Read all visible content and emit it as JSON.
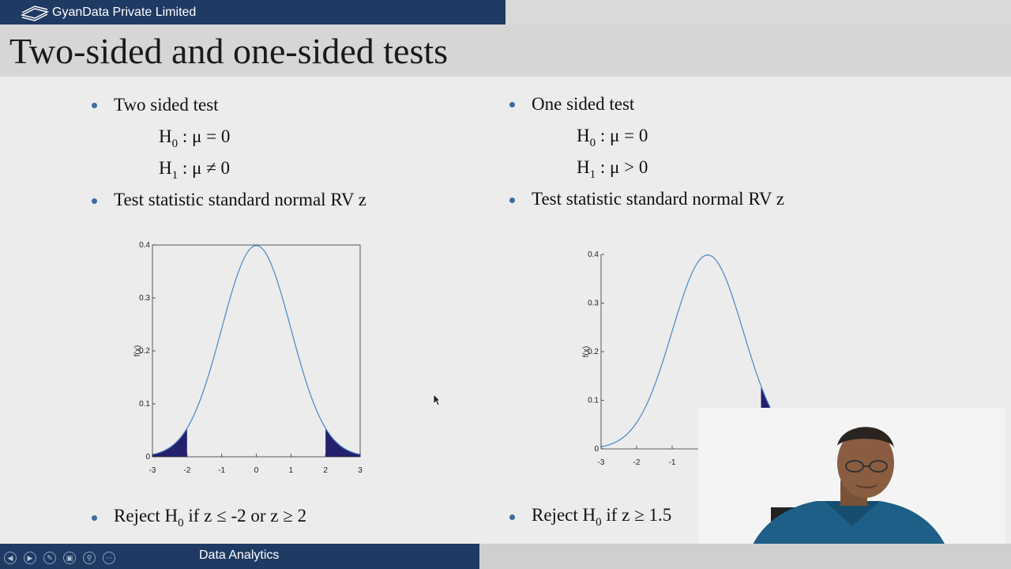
{
  "header": {
    "brand": "GyanData Private Limited",
    "title": "Two-sided and one-sided tests"
  },
  "left": {
    "bullet1": "Two sided test",
    "h0_sym": "H",
    "h0_sub": "0",
    "h0_rest": ":  μ = 0",
    "h1_sym": "H",
    "h1_sub": "1",
    "h1_rest": ":  μ ≠ 0",
    "bullet2": "Test statistic standard normal RV z",
    "reject_pre": "Reject H",
    "reject_sub": "0",
    "reject_post": " if  z ≤ -2  or  z ≥ 2"
  },
  "right": {
    "bullet1": "One sided test",
    "h0_sym": "H",
    "h0_sub": "0",
    "h0_rest": ":  μ = 0",
    "h1_sym": "H",
    "h1_sub": "1",
    "h1_rest": ":  μ > 0",
    "bullet2": "Test statistic standard normal RV z",
    "reject_pre": "Reject H",
    "reject_sub": "0",
    "reject_post": " if   z ≥ 1.5"
  },
  "footer": {
    "title": "Data Analytics",
    "nav_icons": [
      "prev-icon",
      "next-icon",
      "pen-icon",
      "slides-icon",
      "zoom-icon",
      "more-icon"
    ]
  },
  "colors": {
    "curve": "#4a86c8",
    "region": "#25206e",
    "bar": "#1f3a63"
  },
  "chart_data": [
    {
      "type": "line",
      "title": "",
      "xlabel": "",
      "ylabel": "f(x)",
      "xlim": [
        -3,
        3
      ],
      "ylim": [
        0,
        0.4
      ],
      "xticks": [
        "-3",
        "-2",
        "-1",
        "0",
        "1",
        "2",
        "3"
      ],
      "yticks": [
        "0",
        "0.1",
        "0.2",
        "0.3",
        "0.4"
      ],
      "function": "standard normal pdf",
      "shaded_regions": [
        [
          -3,
          -2
        ],
        [
          2,
          3
        ]
      ],
      "grid": false
    },
    {
      "type": "line",
      "title": "",
      "xlabel": "",
      "ylabel": "f(x)",
      "xlim": [
        -3,
        3
      ],
      "ylim": [
        0,
        0.4
      ],
      "xticks": [
        "-3",
        "-2",
        "-1"
      ],
      "yticks": [
        "0",
        "0.1",
        "0.2",
        "0.3",
        "0.4"
      ],
      "function": "standard normal pdf",
      "shaded_regions": [
        [
          1.5,
          3
        ]
      ],
      "grid": false
    }
  ]
}
